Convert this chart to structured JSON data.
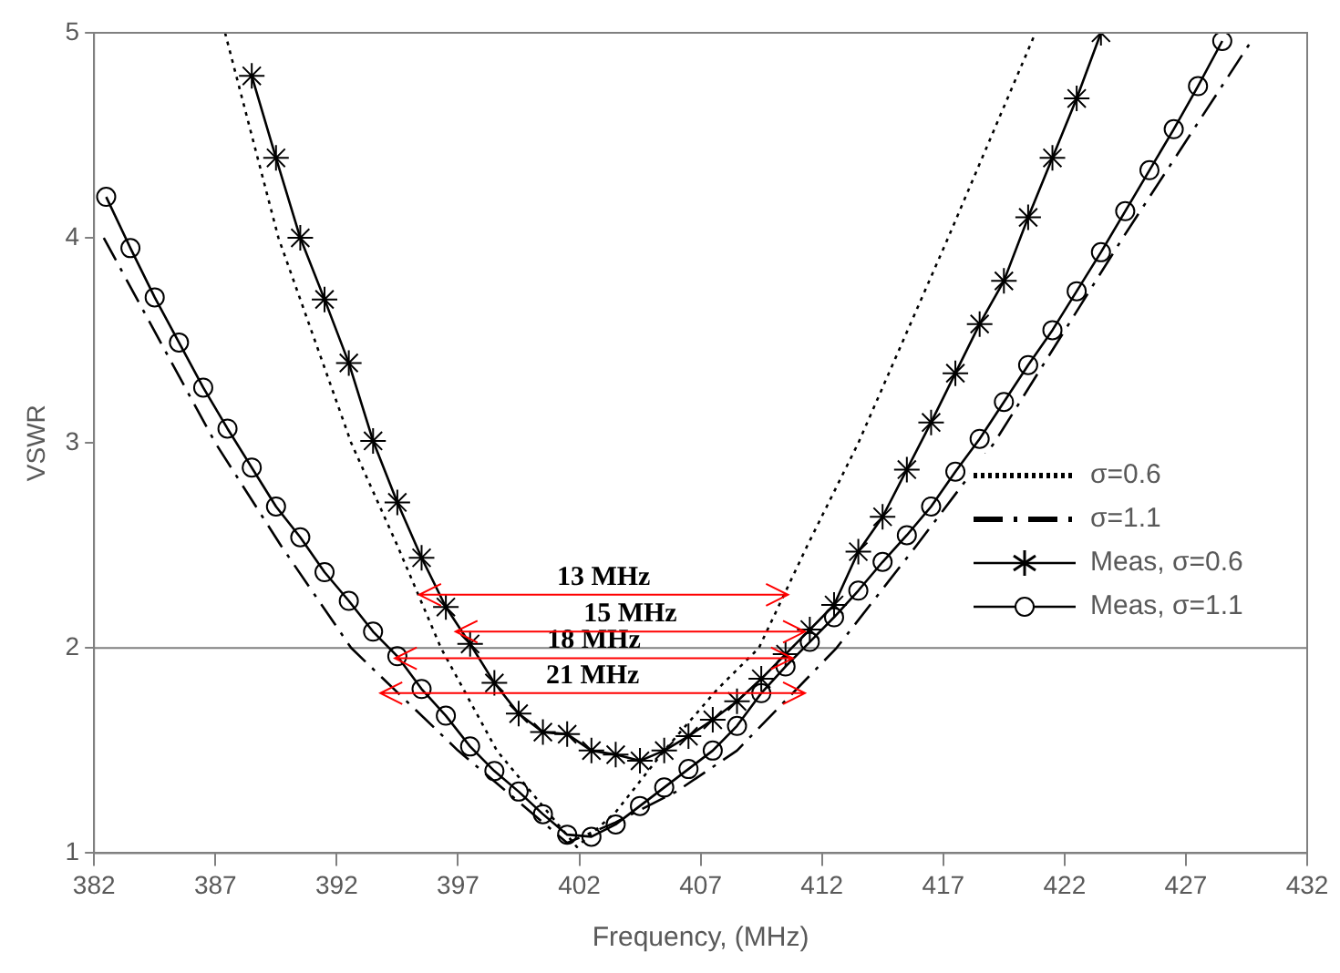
{
  "chart_data": {
    "type": "line",
    "xlabel": "Frequency, (MHz)",
    "ylabel": "VSWR",
    "xlim": [
      382,
      432
    ],
    "xticks": [
      382,
      387,
      392,
      397,
      402,
      407,
      412,
      417,
      422,
      427,
      432
    ],
    "ylim": [
      1,
      5
    ],
    "yticks": [
      1,
      2,
      3,
      4,
      5
    ],
    "grid": false,
    "legend": "right",
    "ref_lines": [
      {
        "axis": "y",
        "value": 2,
        "color": "#808080"
      }
    ],
    "series": [
      {
        "name": "σ=0.6",
        "color": "#000000",
        "marker": "none",
        "line_style": "dotted",
        "x": [
          387.4,
          389.6,
          392.6,
          394.5,
          396.3,
          398.6,
          400.7,
          401.9,
          403.5,
          405.5,
          407.7,
          409.4,
          411.4,
          413.5,
          417.2,
          420.8
        ],
        "values": [
          5,
          4,
          3,
          2.5,
          2,
          1.5,
          1.2,
          1.03,
          1.2,
          1.5,
          1.8,
          2,
          2.5,
          3,
          4,
          5
        ]
      },
      {
        "name": "σ=1.1",
        "color": "#000000",
        "marker": "none",
        "line_style": "dashed",
        "x": [
          382.4,
          384.7,
          387.0,
          389.7,
          392.6,
          397.0,
          399.5,
          401.5,
          403.5,
          406.0,
          408.5,
          412.6,
          415.9,
          419.1,
          424.4,
          429.7
        ],
        "values": [
          4.0,
          3.5,
          3.0,
          2.5,
          2.0,
          1.5,
          1.25,
          1.05,
          1.15,
          1.3,
          1.5,
          2.0,
          2.5,
          3.0,
          4.0,
          4.96
        ]
      },
      {
        "name": "Meas, σ=0.6",
        "color": "#000000",
        "marker": "cross",
        "line_style": "solid",
        "x": [
          388.5,
          389.5,
          390.5,
          391.5,
          392.5,
          393.5,
          394.5,
          395.5,
          396.5,
          397.5,
          398.5,
          399.5,
          400.5,
          401.5,
          402.5,
          403.5,
          404.5,
          405.5,
          406.5,
          407.5,
          408.5,
          409.5,
          410.5,
          411.5,
          412.5,
          413.5,
          414.5,
          415.5,
          416.5,
          417.5,
          418.5,
          419.5,
          420.5,
          421.5,
          422.5,
          423.5
        ],
        "values": [
          4.79,
          4.39,
          4.0,
          3.7,
          3.39,
          3.01,
          2.71,
          2.44,
          2.2,
          2.02,
          1.83,
          1.68,
          1.59,
          1.58,
          1.5,
          1.48,
          1.45,
          1.5,
          1.57,
          1.65,
          1.74,
          1.85,
          1.97,
          2.09,
          2.21,
          2.47,
          2.64,
          2.87,
          3.1,
          3.34,
          3.58,
          3.79,
          4.1,
          4.39,
          4.68,
          5.0
        ]
      },
      {
        "name": "Meas, σ=1.1",
        "color": "#000000",
        "marker": "circle",
        "line_style": "solid",
        "x": [
          382.5,
          383.5,
          384.5,
          385.5,
          386.5,
          387.5,
          388.5,
          389.5,
          390.5,
          391.5,
          392.5,
          393.5,
          394.5,
          395.5,
          396.5,
          397.5,
          398.5,
          399.5,
          400.5,
          401.5,
          402.5,
          403.5,
          404.5,
          405.5,
          406.5,
          407.5,
          408.5,
          409.5,
          410.5,
          411.5,
          412.5,
          413.5,
          414.5,
          415.5,
          416.5,
          417.5,
          418.5,
          419.5,
          420.5,
          421.5,
          422.5,
          423.5,
          424.5,
          425.5,
          426.5,
          427.5,
          428.5
        ],
        "values": [
          4.2,
          3.95,
          3.71,
          3.49,
          3.27,
          3.07,
          2.88,
          2.69,
          2.54,
          2.37,
          2.23,
          2.08,
          1.96,
          1.8,
          1.67,
          1.52,
          1.4,
          1.3,
          1.19,
          1.09,
          1.08,
          1.14,
          1.23,
          1.32,
          1.41,
          1.5,
          1.62,
          1.78,
          1.91,
          2.03,
          2.15,
          2.28,
          2.42,
          2.55,
          2.69,
          2.86,
          3.02,
          3.2,
          3.38,
          3.55,
          3.74,
          3.93,
          4.13,
          4.33,
          4.53,
          4.74,
          4.96
        ]
      }
    ],
    "annotations": [
      "13 MHz",
      "15 MHz",
      "18 MHz",
      "21 MHz"
    ]
  }
}
